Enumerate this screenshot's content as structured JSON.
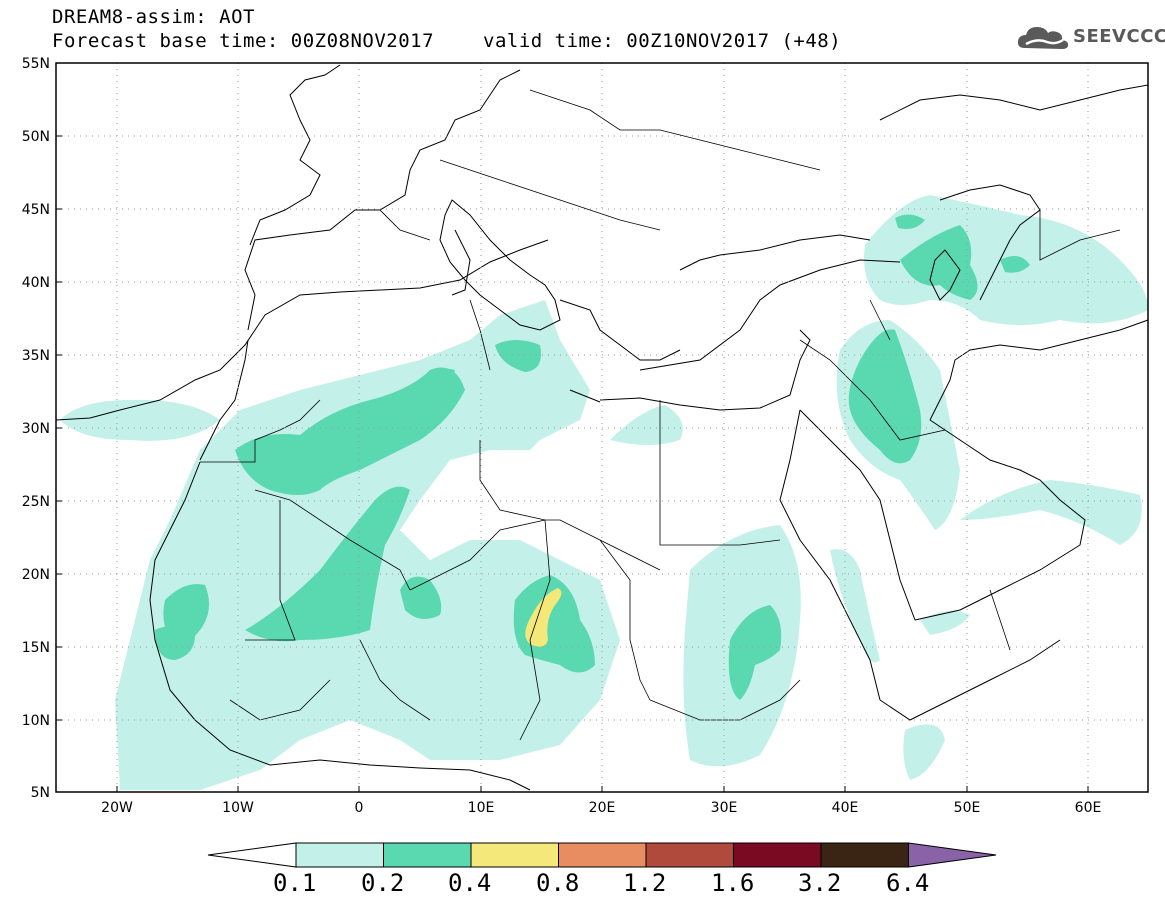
{
  "header": {
    "title": "DREAM8-assim: AOT",
    "base_time": "Forecast base time: 00Z08NOV2017",
    "valid_time": "valid time: 00Z10NOV2017 (+48)",
    "logo_text": "SEEVCCC"
  },
  "axes": {
    "lat_labels": [
      "55N",
      "50N",
      "45N",
      "40N",
      "35N",
      "30N",
      "25N",
      "20N",
      "15N",
      "10N",
      "5N"
    ],
    "lon_labels": [
      "20W",
      "10W",
      "0",
      "10E",
      "20E",
      "30E",
      "40E",
      "50E",
      "60E"
    ]
  },
  "colorbar": {
    "labels": [
      "0.1",
      "0.2",
      "0.4",
      "0.8",
      "1.2",
      "1.6",
      "3.2",
      "6.4"
    ],
    "colors": [
      "#c4f0ea",
      "#5ad8b0",
      "#f4e87a",
      "#e88c62",
      "#b04a3c",
      "#7a0a22",
      "#3a2414",
      "#8a62a8"
    ]
  }
}
